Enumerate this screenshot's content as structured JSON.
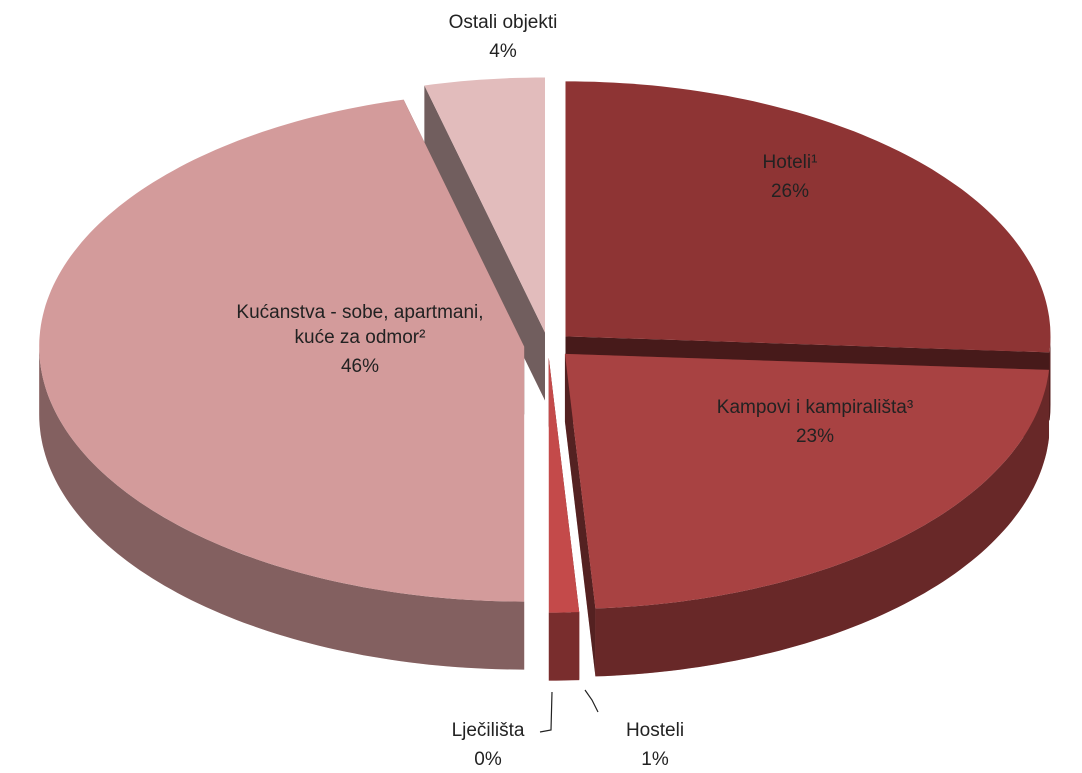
{
  "chart_data": {
    "type": "pie",
    "categories": [
      "Hoteli¹",
      "Kampovi i kampirališta³",
      "Hosteli",
      "Lječilišta",
      "Kućanstva - sobe, apartmani, kuće za odmor²",
      "Ostali objekti"
    ],
    "values": [
      26,
      23,
      1,
      0,
      46,
      4
    ],
    "value_labels": [
      "26%",
      "23%",
      "1%",
      "0%",
      "46%",
      "4%"
    ],
    "colors": [
      "#8e3434",
      "#a84242",
      "#c44a4a",
      "#d58a8a",
      "#d39b9b",
      "#e2bcbc"
    ]
  }
}
